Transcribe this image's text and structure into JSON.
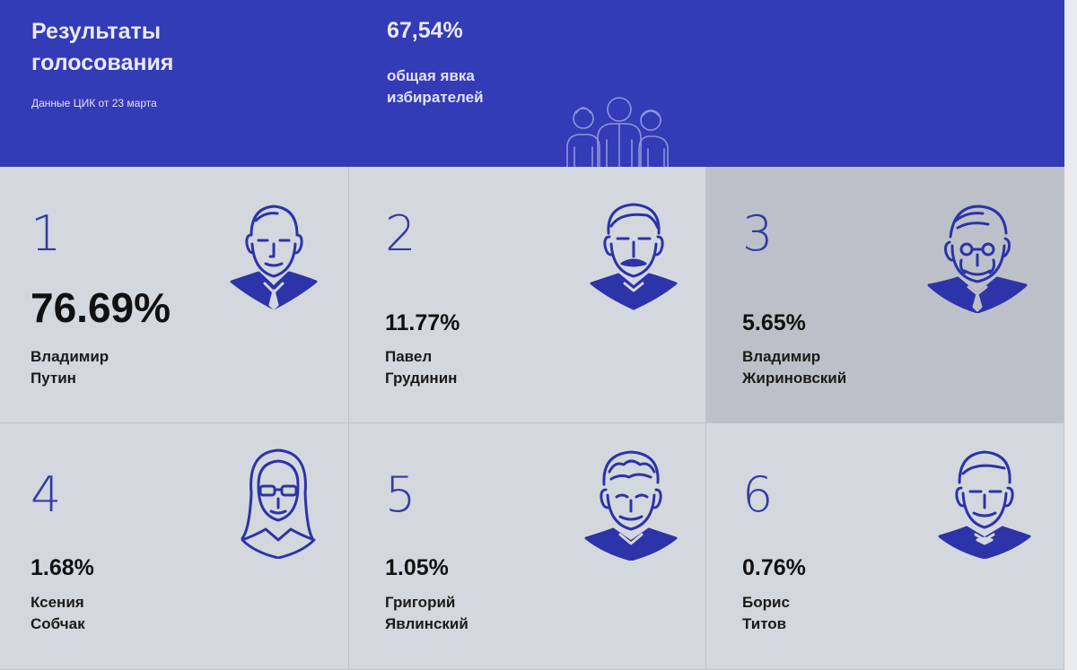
{
  "header": {
    "title_line1": "Результаты",
    "title_line2": "голосования",
    "subtitle": "Данные ЦИК от 23 марта",
    "turnout_value": "67,54%",
    "turnout_label_line1": "общая явка",
    "turnout_label_line2": "избирателей"
  },
  "candidates": [
    {
      "rank": "1",
      "percent": "76.69%",
      "first_name": "Владимир",
      "last_name": "Путин",
      "portrait": "putin-portrait-icon"
    },
    {
      "rank": "2",
      "percent": "11.77%",
      "first_name": "Павел",
      "last_name": "Грудинин",
      "portrait": "grudinin-portrait-icon"
    },
    {
      "rank": "3",
      "percent": "5.65%",
      "first_name": "Владимир",
      "last_name": "Жириновский",
      "portrait": "zhirinovsky-portrait-icon"
    },
    {
      "rank": "4",
      "percent": "1.68%",
      "first_name": "Ксения",
      "last_name": "Собчак",
      "portrait": "sobchak-portrait-icon"
    },
    {
      "rank": "5",
      "percent": "1.05%",
      "first_name": "Григорий",
      "last_name": "Явлинский",
      "portrait": "yavlinsky-portrait-icon"
    },
    {
      "rank": "6",
      "percent": "0.76%",
      "first_name": "Борис",
      "last_name": "Титов",
      "portrait": "titov-portrait-icon"
    }
  ],
  "colors": {
    "header_bg": "#343bb6",
    "accent": "#2d33a8",
    "card_bg": "#d3d8df",
    "card_highlight": "#bcc1c9"
  }
}
